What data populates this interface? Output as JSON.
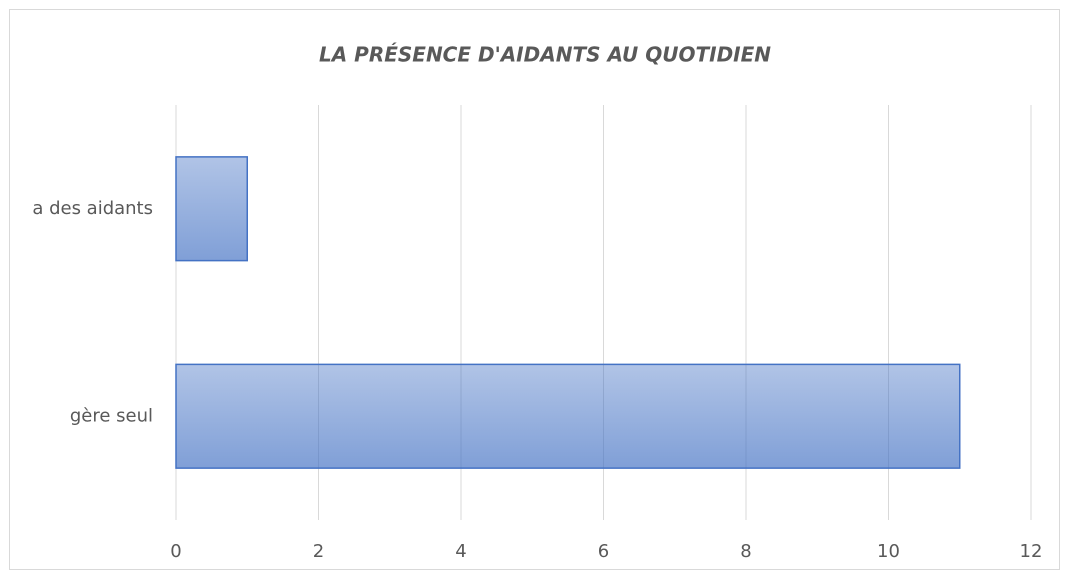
{
  "chart_data": {
    "type": "bar",
    "orientation": "horizontal",
    "title": "LA PRÉSENCE D'AIDANTS AU QUOTIDIEN",
    "categories": [
      "a des aidants",
      "gère seul"
    ],
    "values": [
      1,
      11
    ],
    "color": "#4472c4",
    "xlim": [
      0,
      12
    ],
    "xticks": [
      0,
      2,
      4,
      6,
      8,
      10,
      12
    ],
    "grid": true
  }
}
